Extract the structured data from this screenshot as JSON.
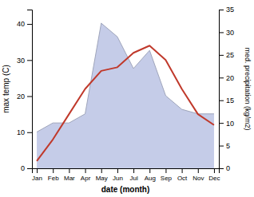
{
  "chart_data": {
    "type": "line",
    "categories": [
      "Jan",
      "Feb",
      "Mar",
      "Apr",
      "May",
      "Jun",
      "Jul",
      "Aug",
      "Sep",
      "Oct",
      "Nov",
      "Dec"
    ],
    "xlabel": "date (month)",
    "ylabel": "max temp (C)",
    "y2label": "med. precipitation (kg/m2)",
    "series": [
      {
        "type": "area",
        "axis": "y2",
        "color": "#c5cce8",
        "values": [
          8,
          10,
          10,
          12,
          32,
          29,
          22,
          26,
          16,
          13,
          12,
          12
        ]
      },
      {
        "type": "line",
        "color": "#c0392b",
        "values": [
          2,
          8,
          15,
          22,
          27,
          28,
          32,
          34,
          30,
          22,
          15,
          12
        ]
      }
    ],
    "ylim": [
      0,
      44
    ],
    "yticks": [
      0,
      10,
      20,
      30,
      40
    ],
    "y2lim": [
      0,
      35
    ],
    "y2ticks": [
      0,
      5,
      10,
      15,
      20,
      25,
      30,
      35
    ],
    "grid": false
  }
}
